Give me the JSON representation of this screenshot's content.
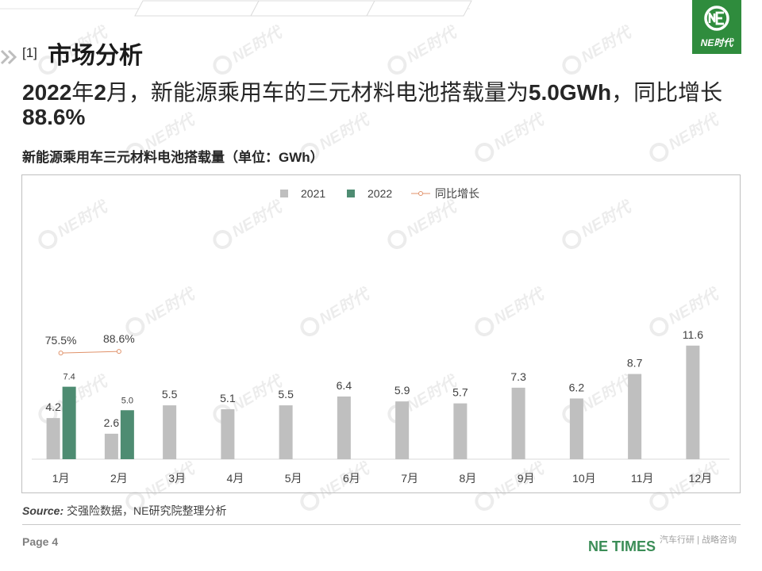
{
  "slide": {
    "section_number": "[1]",
    "section_title": "市场分析",
    "headline": {
      "parts": [
        "2022",
        "年",
        "2",
        "月，新能源乘用车的三元材料电池搭载量为",
        "5.0GWh",
        "，同比增长",
        "88.6%"
      ]
    },
    "source_label": "Source:",
    "source_text": "交强险数据，NE研究院整理分析",
    "page_label": "Page 4",
    "footer_brand": "NE TIMES",
    "footer_tagline": "汽车行研 | 战略咨询"
  },
  "logo": {
    "text": "NE时代",
    "icon": "ne-logo-icon",
    "background": "#2f8c3d"
  },
  "watermark": {
    "text": "NE时代",
    "icon": "ne-logo-icon"
  },
  "icons": {
    "section_marker": "chevron-double-right-icon"
  },
  "colors": {
    "footer_brand": "#3b8d57",
    "frame": "#bfbfbf"
  },
  "chart_data": {
    "type": "bar",
    "title": "新能源乘用车三元材料电池搭载量（单位：GWh）",
    "categories": [
      "1月",
      "2月",
      "3月",
      "4月",
      "5月",
      "6月",
      "7月",
      "8月",
      "9月",
      "10月",
      "11月",
      "12月"
    ],
    "series": [
      {
        "name": "2021",
        "type": "bar",
        "color": "#bfbfbf",
        "values": [
          4.2,
          2.6,
          5.5,
          5.1,
          5.5,
          6.4,
          5.9,
          5.7,
          7.3,
          6.2,
          8.7,
          11.6
        ]
      },
      {
        "name": "2022",
        "type": "bar",
        "color": "#4e8c72",
        "values": [
          7.4,
          5.0,
          null,
          null,
          null,
          null,
          null,
          null,
          null,
          null,
          null,
          null
        ]
      },
      {
        "name": "同比增长",
        "type": "line",
        "axis": "secondary",
        "unit": "%",
        "color": "#e0926a",
        "values": [
          75.5,
          88.6,
          null,
          null,
          null,
          null,
          null,
          null,
          null,
          null,
          null,
          null
        ]
      }
    ],
    "ylim": [
      0,
      26
    ],
    "y2lim": [
      -800,
      1300
    ],
    "data_labels": true,
    "grid": false,
    "legend": "top-center"
  }
}
